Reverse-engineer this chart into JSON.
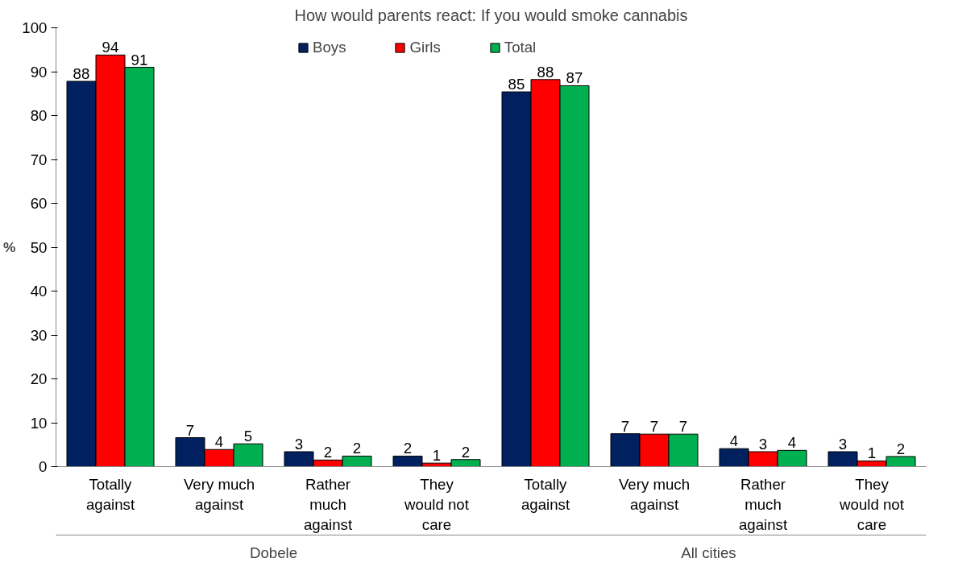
{
  "chart_data": {
    "type": "bar",
    "title": "How would parents react: If you would smoke cannabis",
    "ylabel": "%",
    "categories": [
      "Totally against",
      "Very much against",
      "Rather much against",
      "They would not care",
      "Totally against",
      "Very much against",
      "Rather much against",
      "They would not care"
    ],
    "annotations": [
      "Dobele",
      "All cities"
    ],
    "series": [
      {
        "name": "Boys",
        "color": "#002060",
        "values": [
          87.8,
          6.6,
          3.4,
          2.4,
          85.4,
          7.5,
          4.1,
          3.4
        ],
        "value_labels": [
          "88",
          "7",
          "3",
          "2",
          "85",
          "7",
          "4",
          "3"
        ]
      },
      {
        "name": "Girls",
        "color": "#ff0000",
        "values": [
          93.8,
          3.9,
          1.5,
          0.8,
          88.2,
          7.4,
          3.4,
          1.3
        ],
        "value_labels": [
          "94",
          "4",
          "2",
          "1",
          "88",
          "7",
          "3",
          "1"
        ]
      },
      {
        "name": "Total",
        "color": "#00b050",
        "values": [
          91.0,
          5.2,
          2.4,
          1.6,
          86.8,
          7.4,
          3.7,
          2.3
        ],
        "value_labels": [
          "91",
          "5",
          "2",
          "2",
          "87",
          "7",
          "4",
          "2"
        ]
      }
    ],
    "ylim": [
      0,
      100
    ],
    "yticks": [
      0,
      10,
      20,
      30,
      40,
      50,
      60,
      70,
      80,
      90,
      100
    ],
    "grid": false,
    "legend": "top"
  }
}
